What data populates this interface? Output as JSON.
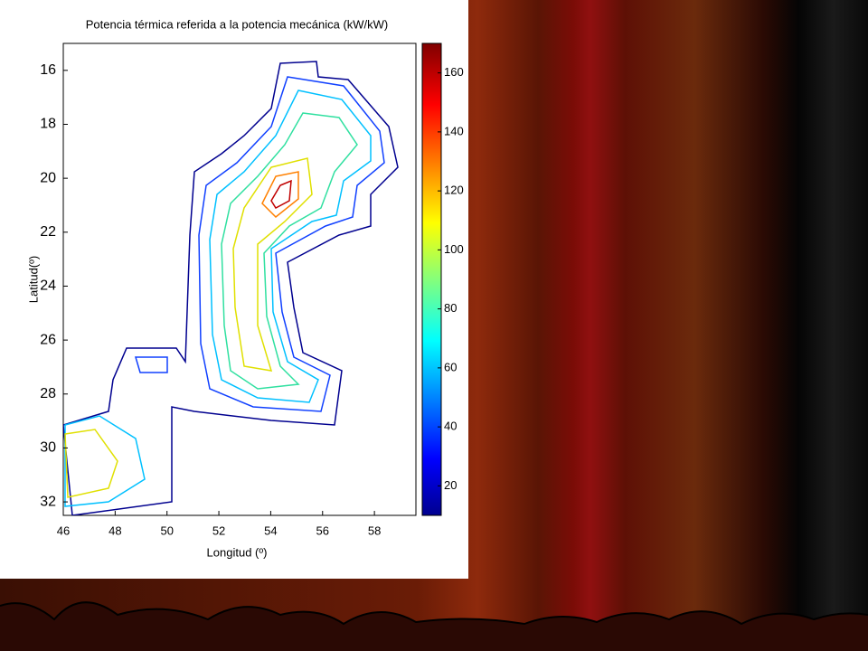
{
  "chart_data": {
    "type": "contour",
    "title": "Potencia térmica referida a la potencia mecánica (kW/kW)",
    "x_label": "Longitud (º)",
    "y_label": "Latitud(º)",
    "xlim": [
      46,
      59.6
    ],
    "xticks": [
      46,
      48,
      50,
      52,
      54,
      56,
      58
    ],
    "ylim": [
      15,
      32.5
    ],
    "yticks": [
      16,
      18,
      20,
      22,
      24,
      26,
      28,
      30,
      32
    ],
    "y_reversed": true,
    "clim": [
      10,
      170
    ],
    "cticks": [
      20,
      40,
      60,
      80,
      100,
      120,
      140,
      160
    ]
  }
}
